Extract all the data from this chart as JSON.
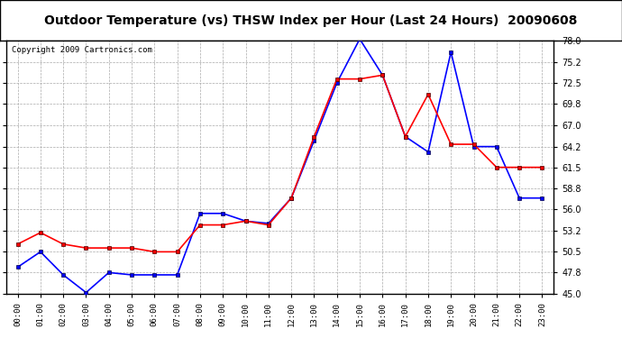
{
  "title": "Outdoor Temperature (vs) THSW Index per Hour (Last 24 Hours)  20090608",
  "copyright": "Copyright 2009 Cartronics.com",
  "hours": [
    "00:00",
    "01:00",
    "02:00",
    "03:00",
    "04:00",
    "05:00",
    "06:00",
    "07:00",
    "08:00",
    "09:00",
    "10:00",
    "11:00",
    "12:00",
    "13:00",
    "14:00",
    "15:00",
    "16:00",
    "17:00",
    "18:00",
    "19:00",
    "20:00",
    "21:00",
    "22:00",
    "23:00"
  ],
  "temp": [
    48.5,
    50.5,
    47.5,
    45.2,
    47.8,
    47.5,
    47.5,
    47.5,
    55.5,
    55.5,
    54.5,
    54.2,
    57.5,
    65.0,
    72.5,
    78.2,
    73.5,
    65.5,
    63.5,
    76.5,
    64.2,
    64.2,
    57.5,
    57.5
  ],
  "thsw": [
    51.5,
    53.0,
    51.5,
    51.0,
    51.0,
    51.0,
    50.5,
    50.5,
    54.0,
    54.0,
    54.5,
    54.0,
    57.5,
    65.5,
    73.0,
    73.0,
    73.5,
    65.5,
    71.0,
    64.5,
    64.5,
    61.5,
    61.5,
    61.5
  ],
  "ylim": [
    45.0,
    78.0
  ],
  "yticks": [
    45.0,
    47.8,
    50.5,
    53.2,
    56.0,
    58.8,
    61.5,
    64.2,
    67.0,
    69.8,
    72.5,
    75.2,
    78.0
  ],
  "blue_color": "#0000FF",
  "red_color": "#FF0000",
  "bg_color": "#FFFFFF",
  "plot_bg_color": "#FFFFFF",
  "grid_color": "#AAAAAA",
  "title_fontsize": 10,
  "copyright_fontsize": 6.5
}
